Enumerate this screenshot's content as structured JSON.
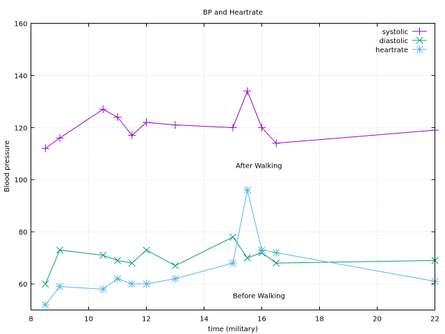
{
  "chart_data": {
    "type": "line",
    "title": "BP and Heartrate",
    "xlabel": "time (military)",
    "ylabel": "Blood pressure",
    "xlim": [
      8,
      22
    ],
    "ylim": [
      50,
      160
    ],
    "xticks": [
      8,
      10,
      12,
      14,
      16,
      18,
      20,
      22
    ],
    "yticks": [
      60,
      80,
      100,
      120,
      140,
      160
    ],
    "grid": true,
    "legend_position": "top-right",
    "series": [
      {
        "name": "systolic",
        "color": "#9400d3",
        "marker": "plus",
        "x": [
          8.5,
          9,
          10.5,
          11,
          11.5,
          12,
          13,
          15,
          15.5,
          16,
          16.5,
          22
        ],
        "y": [
          112,
          116,
          127,
          124,
          117,
          122,
          121,
          120,
          134,
          120,
          114,
          119
        ]
      },
      {
        "name": "diastolic",
        "color": "#009e73",
        "marker": "cross",
        "x": [
          8.5,
          9,
          10.5,
          11,
          11.5,
          12,
          13,
          15,
          15.5,
          16,
          16.5,
          22
        ],
        "y": [
          60,
          73,
          71,
          69,
          68,
          73,
          67,
          78,
          70,
          72,
          68,
          69
        ]
      },
      {
        "name": "heartrate",
        "color": "#56b4e9",
        "marker": "star",
        "x": [
          8.5,
          9,
          10.5,
          11,
          11.5,
          12,
          13,
          15,
          15.5,
          16,
          16.5,
          22
        ],
        "y": [
          52,
          59,
          58,
          62,
          60,
          60,
          62,
          68,
          96,
          73,
          72,
          61
        ]
      }
    ],
    "annotations": [
      {
        "text": "After Walking",
        "x": 15.9,
        "y": 104.5
      },
      {
        "text": "Before Walking",
        "x": 15.9,
        "y": 54.5
      }
    ]
  }
}
